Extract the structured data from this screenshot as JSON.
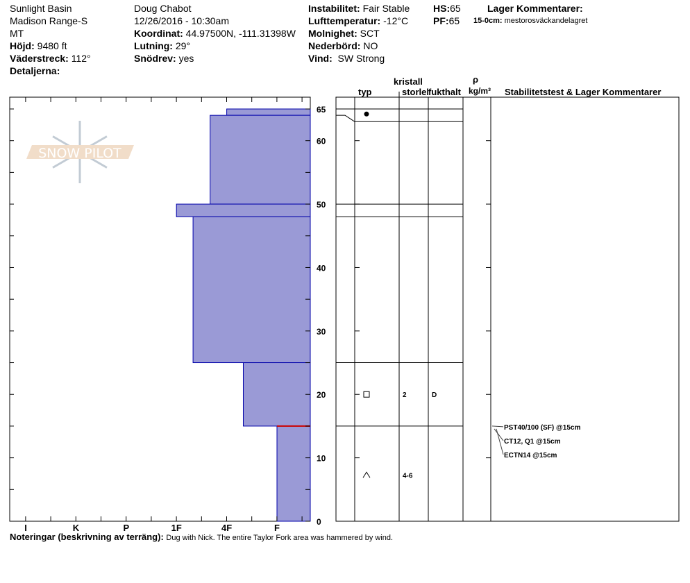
{
  "header": {
    "location": "Sunlight Basin",
    "range": "Madison Range-S",
    "state": "MT",
    "elevation_label": "Höjd:",
    "elevation": "9480 ft",
    "aspect_label": "Väderstreck:",
    "aspect": "112°",
    "details_label": "Detaljerna:",
    "observer": "Doug Chabot",
    "datetime": "12/26/2016 - 10:30am",
    "coord_label": "Koordinat:",
    "coord": "44.97500N, -111.31398W",
    "slope_label": "Lutning:",
    "slope": "29°",
    "drift_label": "Snödrev:",
    "drift": "yes",
    "instability_label": "Instabilitet:",
    "instability": "Fair Stable",
    "airtemp_label": "Lufttemperatur:",
    "airtemp": "-12°C",
    "sky_label": "Molnighet:",
    "sky": "SCT",
    "precip_label": "Nederbörd:",
    "precip": "NO",
    "wind_label": "Vind:",
    "wind": "SW Strong",
    "hs_label": "HS:",
    "hs": "65",
    "pf_label": "PF:",
    "pf": "65",
    "layer_comments_title": "Lager Kommentarer:",
    "layer_comment_range": "15-0cm:",
    "layer_comment": "mestorosväckandelagret"
  },
  "columns": {
    "crystal": "kristall",
    "type": "typ",
    "size": "storlek",
    "moisture": "fukthalt",
    "rho": "ρ",
    "density_unit": "kg/m³",
    "tests": "Stabilitetstest & Lager Kommentarer"
  },
  "notes": {
    "label": "Noteringar (beskrivning av terräng):",
    "text": "Dug with Nick. The entire Taylor Fork area was hammered by wind."
  },
  "logo_text": "SNOW PILOT",
  "colors": {
    "layer_fill": "#9a9ad6",
    "layer_stroke": "#0000aa",
    "weak_layer": "#cc0000"
  },
  "chart_data": {
    "type": "bar",
    "orientation": "horizontal-step",
    "ylabel": "",
    "ylim": [
      0,
      65
    ],
    "y_ticks": [
      0,
      10,
      20,
      30,
      40,
      50,
      60,
      65
    ],
    "hardness_ticks": [
      "I",
      "K",
      "P",
      "1F",
      "4F",
      "F"
    ],
    "layers": [
      {
        "top": 65,
        "bottom": 64,
        "hardness": "4F",
        "hardness_value": 4.0
      },
      {
        "top": 64,
        "bottom": 50,
        "hardness": "4F-",
        "hardness_value": 3.67
      },
      {
        "top": 50,
        "bottom": 48,
        "hardness": "1F",
        "hardness_value": 3.0
      },
      {
        "top": 48,
        "bottom": 25,
        "hardness": "1F+",
        "hardness_value": 3.33
      },
      {
        "top": 25,
        "bottom": 15,
        "hardness": "4F+",
        "hardness_value": 4.33
      },
      {
        "top": 15,
        "bottom": 0,
        "hardness": "F",
        "hardness_value": 5.0
      }
    ],
    "weak_layer_depth": 15,
    "layer_boundaries_right": [
      65,
      63,
      50,
      48,
      25,
      15
    ],
    "crystals": [
      {
        "top": 65,
        "bottom": 63,
        "type_icon": "graupel-icon",
        "size": "",
        "moisture": ""
      },
      {
        "top": 25,
        "bottom": 15,
        "type_icon": "faceted-square-icon",
        "size": "2",
        "moisture": "D"
      },
      {
        "top": 15,
        "bottom": 0,
        "type_icon": "depth-hoar-icon",
        "size": "4-6",
        "moisture": ""
      }
    ],
    "tests": [
      {
        "label": "PST40/100 (SF) @15cm",
        "depth": 15
      },
      {
        "label": "CT12, Q1 @15cm",
        "depth": 15
      },
      {
        "label": "ECTN14 @15cm",
        "depth": 15
      }
    ]
  }
}
